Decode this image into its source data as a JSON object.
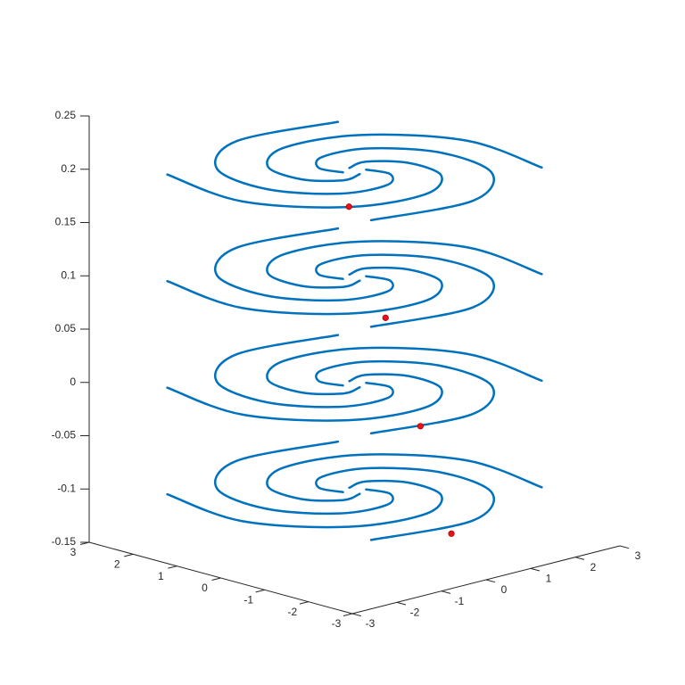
{
  "chart_data": {
    "type": "line3d",
    "xlim": [
      -3,
      3
    ],
    "ylim": [
      -3,
      3
    ],
    "zlim": [
      -0.15,
      0.25
    ],
    "xticks": [
      -3,
      -2,
      -1,
      0,
      1,
      2,
      3
    ],
    "yticks": [
      -3,
      -2,
      -1,
      0,
      1,
      2,
      3
    ],
    "zticks": [
      -0.15,
      -0.1,
      -0.05,
      0,
      0.05,
      0.1,
      0.15,
      0.2,
      0.25
    ],
    "color": "#0072bd",
    "marker_color": "#e8141a",
    "layers": [
      {
        "z": 0.2,
        "marker": {
          "x": -1.49,
          "y": -1.59
        },
        "arms": [
          {
            "x": [
              0.19,
              0.28,
              -0.23,
              -1.14,
              -1.79,
              -1.5,
              -0.08,
              1.91
            ],
            "y": [
              0.07,
              0.53,
              0.97,
              0.82,
              -0.18,
              -1.61,
              -2.6,
              -2.32
            ]
          },
          {
            "x": [
              -0.07,
              -0.53,
              -0.97,
              -0.82,
              0.18,
              1.61,
              2.6,
              2.32
            ],
            "y": [
              0.19,
              0.28,
              -0.23,
              -1.14,
              -1.79,
              -1.5,
              -0.08,
              1.91
            ]
          },
          {
            "x": [
              -0.19,
              -0.28,
              0.23,
              1.14,
              1.79,
              1.5,
              0.08,
              -1.91
            ],
            "y": [
              -0.07,
              -0.53,
              -0.97,
              -0.82,
              0.18,
              1.61,
              2.6,
              2.32
            ]
          },
          {
            "x": [
              0.07,
              0.53,
              0.97,
              0.82,
              -0.18,
              -1.61,
              -2.6,
              -2.32
            ],
            "y": [
              -0.19,
              -0.28,
              0.23,
              1.14,
              1.79,
              1.5,
              0.08,
              -1.91
            ]
          }
        ]
      },
      {
        "z": 0.1,
        "marker": {
          "x": -2.09,
          "y": -1.36
        },
        "arms": [
          {
            "x": [
              0.19,
              0.28,
              -0.23,
              -1.14,
              -1.79,
              -1.5,
              -0.08,
              1.91
            ],
            "y": [
              0.07,
              0.53,
              0.97,
              0.82,
              -0.18,
              -1.61,
              -2.6,
              -2.32
            ]
          },
          {
            "x": [
              -0.07,
              -0.53,
              -0.97,
              -0.82,
              0.18,
              1.61,
              2.6,
              2.32
            ],
            "y": [
              0.19,
              0.28,
              -0.23,
              -1.14,
              -1.79,
              -1.5,
              -0.08,
              1.91
            ]
          },
          {
            "x": [
              -0.19,
              -0.28,
              0.23,
              1.14,
              1.79,
              1.5,
              0.08,
              -1.91
            ],
            "y": [
              -0.07,
              -0.53,
              -0.97,
              -0.82,
              0.18,
              1.61,
              2.6,
              2.32
            ]
          },
          {
            "x": [
              0.07,
              0.53,
              0.97,
              0.82,
              -0.18,
              -1.61,
              -2.6,
              -2.32
            ],
            "y": [
              -0.19,
              -0.28,
              0.23,
              1.14,
              1.79,
              1.5,
              0.08,
              -1.91
            ]
          }
        ]
      },
      {
        "z": 0,
        "marker": {
          "x": -2.55,
          "y": -1.03
        },
        "arms": [
          {
            "x": [
              0.19,
              0.28,
              -0.23,
              -1.14,
              -1.79,
              -1.5,
              -0.08,
              1.91
            ],
            "y": [
              0.07,
              0.53,
              0.97,
              0.82,
              -0.18,
              -1.61,
              -2.6,
              -2.32
            ]
          },
          {
            "x": [
              -0.07,
              -0.53,
              -0.97,
              -0.82,
              0.18,
              1.61,
              2.6,
              2.32
            ],
            "y": [
              0.19,
              0.28,
              -0.23,
              -1.14,
              -1.79,
              -1.5,
              -0.08,
              1.91
            ]
          },
          {
            "x": [
              -0.19,
              -0.28,
              0.23,
              1.14,
              1.79,
              1.5,
              0.08,
              -1.91
            ],
            "y": [
              -0.07,
              -0.53,
              -0.97,
              -0.82,
              0.18,
              1.61,
              2.6,
              2.32
            ]
          },
          {
            "x": [
              0.07,
              0.53,
              0.97,
              0.82,
              -0.18,
              -1.61,
              -2.6,
              -2.32
            ],
            "y": [
              -0.19,
              -0.28,
              0.23,
              1.14,
              1.79,
              1.5,
              0.08,
              -1.91
            ]
          }
        ]
      },
      {
        "z": -0.1,
        "marker": {
          "x": -2.93,
          "y": -0.71
        },
        "arms": [
          {
            "x": [
              0.19,
              0.28,
              -0.23,
              -1.14,
              -1.79,
              -1.5,
              -0.08,
              1.91
            ],
            "y": [
              0.07,
              0.53,
              0.97,
              0.82,
              -0.18,
              -1.61,
              -2.6,
              -2.32
            ]
          },
          {
            "x": [
              -0.07,
              -0.53,
              -0.97,
              -0.82,
              0.18,
              1.61,
              2.6,
              2.32
            ],
            "y": [
              0.19,
              0.28,
              -0.23,
              -1.14,
              -1.79,
              -1.5,
              -0.08,
              1.91
            ]
          },
          {
            "x": [
              -0.19,
              -0.28,
              0.23,
              1.14,
              1.79,
              1.5,
              0.08,
              -1.91
            ],
            "y": [
              -0.07,
              -0.53,
              -0.97,
              -0.82,
              0.18,
              1.61,
              2.6,
              2.32
            ]
          },
          {
            "x": [
              0.07,
              0.53,
              0.97,
              0.82,
              -0.18,
              -1.61,
              -2.6,
              -2.32
            ],
            "y": [
              -0.19,
              -0.28,
              0.23,
              1.14,
              1.79,
              1.5,
              0.08,
              -1.91
            ]
          }
        ]
      }
    ]
  }
}
